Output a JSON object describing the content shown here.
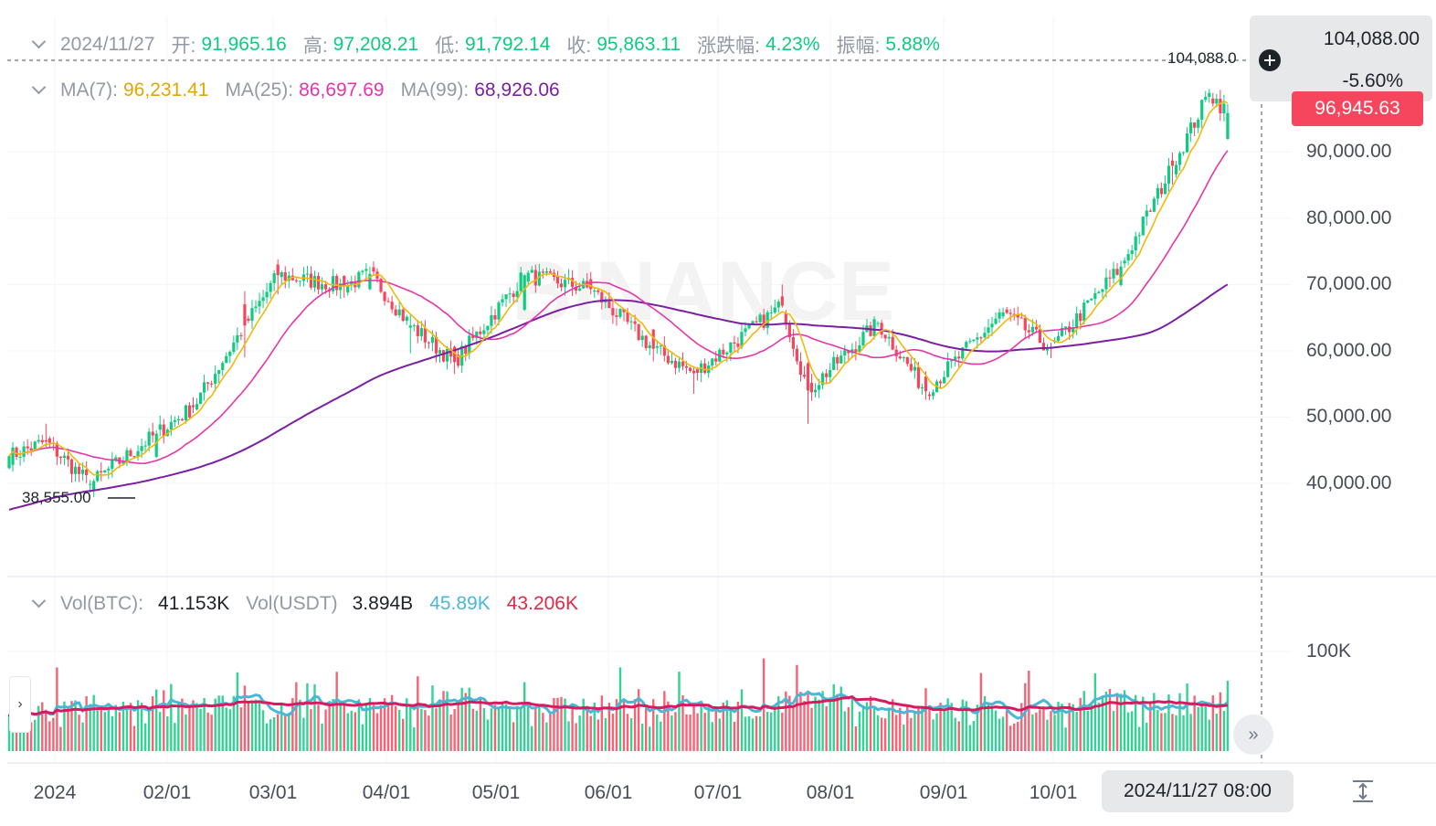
{
  "header": {
    "date": "2024/11/27",
    "open_label": "开:",
    "open": "91,965.16",
    "high_label": "高:",
    "high": "97,208.21",
    "low_label": "低:",
    "low": "91,792.14",
    "close_label": "收:",
    "close": "95,863.11",
    "change_label": "涨跌幅:",
    "change": "4.23%",
    "amplitude_label": "振幅:",
    "amplitude": "5.88%"
  },
  "ma_row": {
    "ma7_label": "MA(7):",
    "ma7": "96,231.41",
    "ma25_label": "MA(25):",
    "ma25": "86,697.69",
    "ma99_label": "MA(99):",
    "ma99": "68,926.06"
  },
  "vol_row": {
    "btc_label": "Vol(BTC):",
    "btc": "41.153K",
    "usdt_label": "Vol(USDT)",
    "usdt": "3.894B",
    "ma1": "45.89K",
    "ma2": "43.206K"
  },
  "price_axis": [
    "90,000.00",
    "80,000.00",
    "70,000.00",
    "60,000.00",
    "50,000.00",
    "40,000.00"
  ],
  "volume_axis": [
    "100K"
  ],
  "time_axis": [
    "2024",
    "02/01",
    "03/01",
    "04/01",
    "05/01",
    "06/01",
    "07/01",
    "08/01",
    "09/01",
    "10/01"
  ],
  "crosshair": {
    "time": "2024/11/27 08:00",
    "price": "104,088.00",
    "pct": "-5.60%"
  },
  "last_price": "96,945.63",
  "markers": {
    "high": "104,088.0",
    "low": "38,555.00"
  },
  "watermark": "BINANCE",
  "colors": {
    "up": "#0ecb81",
    "down": "#f6465d",
    "ma7": "#f0b90b",
    "ma25": "#e535ab",
    "ma99": "#7b1fa2",
    "vol_ma1": "#4bb7d6",
    "vol_ma2": "#d81b60"
  },
  "chart_data": {
    "type": "candlestick",
    "title": "",
    "y_range": [
      30000,
      104000
    ],
    "x_start": "2024-01-01",
    "interval": "1d",
    "candles_step_days": 1,
    "anchors_ohlc": [
      [
        "2024-01-01",
        42300,
        44200,
        42100,
        44100
      ],
      [
        "2024-01-11",
        46500,
        49000,
        45500,
        46300
      ],
      [
        "2024-01-23",
        39800,
        40500,
        38555,
        39900
      ],
      [
        "2024-02-10",
        44000,
        48000,
        43800,
        47500
      ],
      [
        "2024-02-20",
        51800,
        53000,
        50600,
        51500
      ],
      [
        "2024-03-05",
        67000,
        69000,
        59000,
        63800
      ],
      [
        "2024-03-14",
        73000,
        73800,
        68500,
        71400
      ],
      [
        "2024-04-01",
        71300,
        71400,
        68000,
        69700
      ],
      [
        "2024-04-08",
        69300,
        72700,
        69100,
        71600
      ],
      [
        "2024-04-19",
        63500,
        65500,
        59600,
        63800
      ],
      [
        "2024-05-01",
        60600,
        60800,
        56500,
        58300
      ],
      [
        "2024-05-20",
        66200,
        71500,
        66000,
        71400
      ],
      [
        "2024-06-07",
        70800,
        71900,
        68500,
        69300
      ],
      [
        "2024-06-24",
        63200,
        63300,
        58400,
        60300
      ],
      [
        "2024-07-05",
        57000,
        57500,
        53500,
        56600
      ],
      [
        "2024-07-29",
        68200,
        70000,
        66500,
        66800
      ],
      [
        "2024-08-05",
        58100,
        58300,
        49000,
        54000
      ],
      [
        "2024-08-24",
        64100,
        64500,
        63600,
        64200
      ],
      [
        "2024-09-06",
        56100,
        56900,
        52600,
        53900
      ],
      [
        "2024-09-27",
        65200,
        66500,
        64800,
        65800
      ],
      [
        "2024-10-10",
        60600,
        61200,
        58900,
        60300
      ],
      [
        "2024-10-29",
        69900,
        73600,
        69700,
        72700
      ],
      [
        "2024-11-12",
        88700,
        89900,
        85100,
        87900
      ],
      [
        "2024-11-22",
        98300,
        99500,
        97400,
        98900
      ],
      [
        "2024-11-27",
        91965.16,
        97208.21,
        91792.14,
        95863.11
      ]
    ]
  }
}
